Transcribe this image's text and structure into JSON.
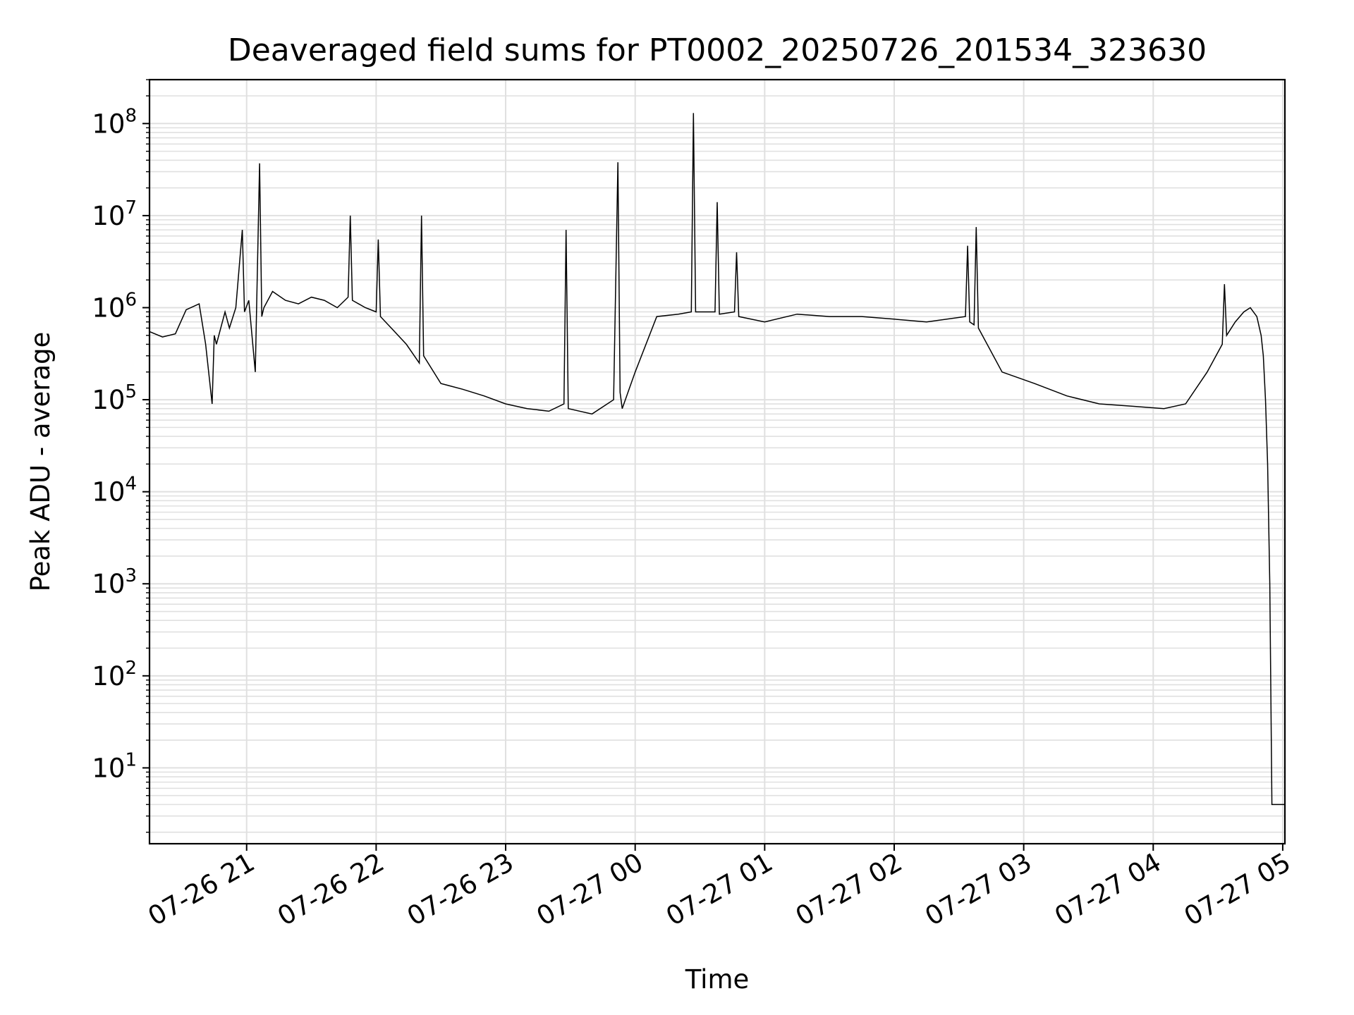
{
  "chart_data": {
    "type": "line",
    "title": "Deaveraged field sums for PT0002_20250726_201534_323630",
    "xlabel": "Time",
    "ylabel": "Peak ADU - average",
    "xscale": "date",
    "xlim": [
      "2025-07-26 20:15",
      "2025-07-27 05:01"
    ],
    "yscale": "log",
    "ylim": [
      1.5,
      300000000
    ],
    "grid": true,
    "colors": {
      "line": "#000000",
      "grid": "#e0e0e0",
      "axes": "#000000"
    },
    "x_ticks": [
      {
        "value": "2025-07-26 21:00",
        "label": "07-26 21"
      },
      {
        "value": "2025-07-26 22:00",
        "label": "07-26 22"
      },
      {
        "value": "2025-07-26 23:00",
        "label": "07-26 23"
      },
      {
        "value": "2025-07-27 00:00",
        "label": "07-27 00"
      },
      {
        "value": "2025-07-27 01:00",
        "label": "07-27 01"
      },
      {
        "value": "2025-07-27 02:00",
        "label": "07-27 02"
      },
      {
        "value": "2025-07-27 03:00",
        "label": "07-27 03"
      },
      {
        "value": "2025-07-27 04:00",
        "label": "07-27 04"
      },
      {
        "value": "2025-07-27 05:00",
        "label": "07-27 05"
      }
    ],
    "y_ticks": [
      {
        "value": 10,
        "base": "10",
        "exp": "1"
      },
      {
        "value": 100,
        "base": "10",
        "exp": "2"
      },
      {
        "value": 1000,
        "base": "10",
        "exp": "3"
      },
      {
        "value": 10000,
        "base": "10",
        "exp": "4"
      },
      {
        "value": 100000,
        "base": "10",
        "exp": "5"
      },
      {
        "value": 1000000,
        "base": "10",
        "exp": "6"
      },
      {
        "value": 10000000,
        "base": "10",
        "exp": "7"
      },
      {
        "value": 100000000,
        "base": "10",
        "exp": "8"
      }
    ],
    "series": [
      {
        "x": [
          "2025-07-26 20:15",
          "2025-07-26 20:21",
          "2025-07-26 20:27",
          "2025-07-26 20:32",
          "2025-07-26 20:38",
          "2025-07-26 20:41",
          "2025-07-26 20:44",
          "2025-07-26 20:45",
          "2025-07-26 20:46",
          "2025-07-26 20:50",
          "2025-07-26 20:52",
          "2025-07-26 20:55",
          "2025-07-26 20:58",
          "2025-07-26 20:59",
          "2025-07-26 21:01",
          "2025-07-26 21:04",
          "2025-07-26 21:06",
          "2025-07-26 21:07",
          "2025-07-26 21:08",
          "2025-07-26 21:12",
          "2025-07-26 21:18",
          "2025-07-26 21:24",
          "2025-07-26 21:30",
          "2025-07-26 21:36",
          "2025-07-26 21:42",
          "2025-07-26 21:47",
          "2025-07-26 21:48",
          "2025-07-26 21:49",
          "2025-07-26 21:55",
          "2025-07-26 22:00",
          "2025-07-26 22:01",
          "2025-07-26 22:02",
          "2025-07-26 22:07",
          "2025-07-26 22:14",
          "2025-07-26 22:20",
          "2025-07-26 22:21",
          "2025-07-26 22:22",
          "2025-07-26 22:30",
          "2025-07-26 22:40",
          "2025-07-26 22:50",
          "2025-07-26 23:00",
          "2025-07-26 23:10",
          "2025-07-26 23:20",
          "2025-07-26 23:27",
          "2025-07-26 23:28",
          "2025-07-26 23:29",
          "2025-07-26 23:40",
          "2025-07-26 23:50",
          "2025-07-26 23:52",
          "2025-07-26 23:53",
          "2025-07-26 23:54",
          "2025-07-27 00:00",
          "2025-07-27 00:10",
          "2025-07-27 00:20",
          "2025-07-27 00:26",
          "2025-07-27 00:27",
          "2025-07-27 00:28",
          "2025-07-27 00:37",
          "2025-07-27 00:38",
          "2025-07-27 00:39",
          "2025-07-27 00:46",
          "2025-07-27 00:47",
          "2025-07-27 00:48",
          "2025-07-27 01:00",
          "2025-07-27 01:15",
          "2025-07-27 01:30",
          "2025-07-27 01:45",
          "2025-07-27 02:00",
          "2025-07-27 02:15",
          "2025-07-27 02:33",
          "2025-07-27 02:34",
          "2025-07-27 02:35",
          "2025-07-27 02:37",
          "2025-07-27 02:38",
          "2025-07-27 02:39",
          "2025-07-27 02:50",
          "2025-07-27 03:05",
          "2025-07-27 03:20",
          "2025-07-27 03:35",
          "2025-07-27 03:50",
          "2025-07-27 04:05",
          "2025-07-27 04:15",
          "2025-07-27 04:25",
          "2025-07-27 04:32",
          "2025-07-27 04:33",
          "2025-07-27 04:34",
          "2025-07-27 04:38",
          "2025-07-27 04:42",
          "2025-07-27 04:45",
          "2025-07-27 04:48",
          "2025-07-27 04:50",
          "2025-07-27 04:51",
          "2025-07-27 04:52",
          "2025-07-27 04:53",
          "2025-07-27 04:54",
          "2025-07-27 04:55",
          "2025-07-27 04:56",
          "2025-07-27 05:01"
        ],
        "y": [
          550000,
          480000,
          520000,
          950000,
          1100000,
          400000,
          90000,
          500000,
          400000,
          900000,
          600000,
          1000000,
          7000000,
          900000,
          1200000,
          200000,
          37000000,
          800000,
          1000000,
          1500000,
          1200000,
          1100000,
          1300000,
          1200000,
          1000000,
          1300000,
          10000000,
          1200000,
          1000000,
          900000,
          5500000,
          800000,
          600000,
          400000,
          250000,
          10000000,
          300000,
          150000,
          130000,
          110000,
          90000,
          80000,
          75000,
          90000,
          7000000,
          80000,
          70000,
          100000,
          38000000,
          120000,
          80000,
          200000,
          800000,
          850000,
          900000,
          130000000,
          900000,
          900000,
          14000000,
          850000,
          900000,
          4000000,
          800000,
          700000,
          850000,
          800000,
          800000,
          750000,
          700000,
          800000,
          4700000,
          700000,
          650000,
          7500000,
          600000,
          200000,
          150000,
          110000,
          90000,
          85000,
          80000,
          90000,
          200000,
          400000,
          1800000,
          500000,
          700000,
          900000,
          1000000,
          800000,
          500000,
          300000,
          100000,
          20000,
          1000,
          4,
          4,
          4
        ]
      }
    ]
  }
}
